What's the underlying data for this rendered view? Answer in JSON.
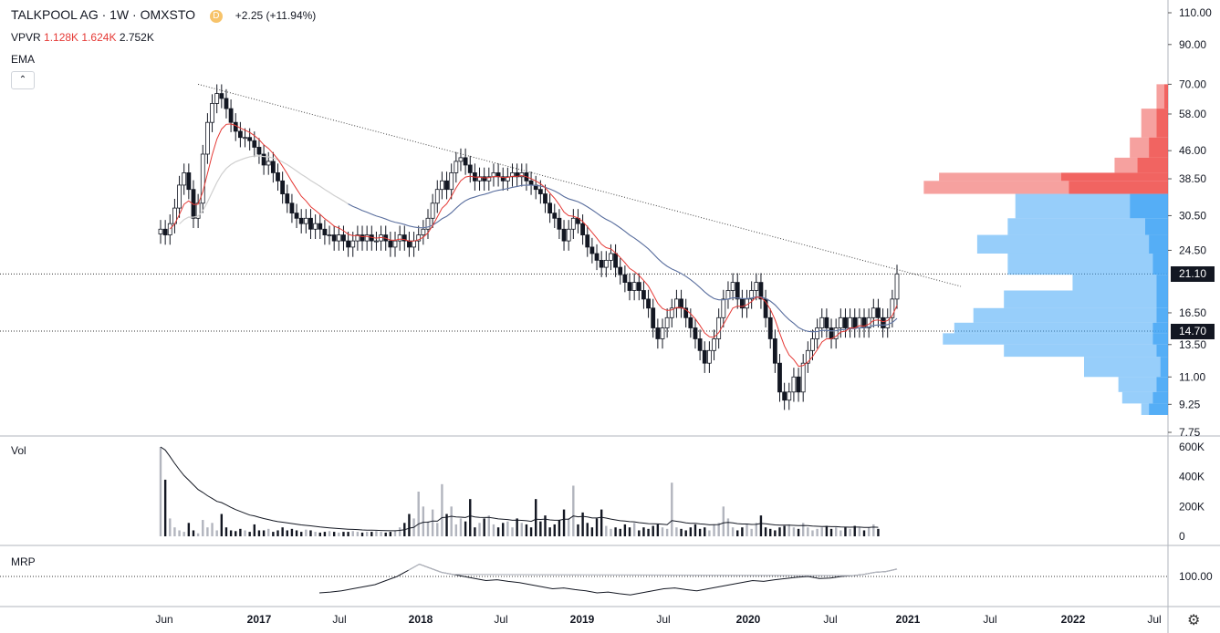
{
  "legend": {
    "symbol": "TALKPOOL AG · 1W · OMXSTO",
    "delay_badge": "D",
    "change": "+2.25 (+11.94%)",
    "vpvr_label": "VPVR",
    "vpvr_v1": "1.128K",
    "vpvr_v2": "1.624K",
    "vpvr_v3": "2.752K",
    "ema_label": "EMA",
    "collapse_glyph": "⌃"
  },
  "panes": {
    "volume_label": "Vol",
    "mrp_label": "MRP"
  },
  "price_tags": {
    "last": "21.10",
    "low_line": "14.70"
  },
  "colors": {
    "candle": "#131722",
    "ema_fast": "#e53935",
    "ema_slow": "#1e3f8a",
    "ema_slow_light": "#cfcfcf",
    "vpvr_up": "#42a5f5",
    "vpvr_down": "#ef5350",
    "grid": "#e0e3eb"
  },
  "icons": {
    "settings": "gear-icon"
  },
  "chart_data": {
    "type": "candlestick",
    "price_axis_ticks": [
      "110.00",
      "90.00",
      "70.00",
      "58.00",
      "46.00",
      "38.50",
      "30.50",
      "24.50",
      "21.10",
      "16.50",
      "14.70",
      "13.50",
      "11.00",
      "9.25",
      "7.75"
    ],
    "volume_axis_ticks": [
      "600K",
      "400K",
      "200K",
      "0"
    ],
    "mrp_axis_ticks": [
      "100.00"
    ],
    "time_axis_ticks": [
      "Jun",
      "2017",
      "Jul",
      "2018",
      "Jul",
      "2019",
      "Jul",
      "2020",
      "Jul",
      "2021",
      "Jul",
      "2022",
      "Jul"
    ],
    "trendline": {
      "from": 70,
      "to": 19.5
    },
    "horizontal_lines": [
      21.1,
      14.7
    ],
    "close_series": [
      28,
      27,
      29,
      32,
      37,
      40,
      36,
      30,
      33,
      45,
      55,
      62,
      66,
      64,
      60,
      55,
      52,
      50,
      50,
      49,
      47,
      45,
      42,
      43,
      40,
      38,
      35,
      33,
      31,
      30,
      29,
      30,
      28,
      29,
      28,
      27,
      27,
      26,
      27,
      26,
      25,
      26,
      27,
      26,
      27,
      26,
      26,
      27,
      26,
      25,
      26,
      27,
      26,
      25,
      26,
      27,
      28,
      30,
      33,
      36,
      38,
      36,
      40,
      43,
      44,
      42,
      40,
      38,
      39,
      38,
      39,
      40,
      39,
      38,
      39,
      40,
      39,
      40,
      38,
      37,
      36,
      35,
      33,
      31,
      30,
      28,
      26,
      28,
      30,
      29,
      27,
      25,
      24,
      23,
      22,
      23,
      24,
      22,
      21,
      20,
      19,
      20,
      19,
      18,
      17,
      15,
      14,
      15,
      16,
      17,
      18,
      17,
      16,
      15,
      14,
      13,
      12,
      13,
      14,
      16,
      18,
      19,
      20,
      18,
      17,
      18,
      19,
      20,
      18,
      16,
      14,
      12,
      10,
      9.5,
      10,
      11,
      10,
      12,
      13,
      14,
      15,
      16,
      15,
      14,
      15,
      16,
      15,
      16,
      15,
      16,
      15,
      16,
      17,
      16,
      15,
      16,
      18,
      21.1
    ],
    "vpvr_profile": [
      {
        "price": 70,
        "up": 0.02,
        "down": 0.01
      },
      {
        "price": 60,
        "up": 0.04,
        "down": 0.03
      },
      {
        "price": 50,
        "up": 0.05,
        "down": 0.05
      },
      {
        "price": 44,
        "up": 0.06,
        "down": 0.08
      },
      {
        "price": 40,
        "up": 0.32,
        "down": 0.28
      },
      {
        "price": 38,
        "up": 0.38,
        "down": 0.26
      },
      {
        "price": 35,
        "up": 0.3,
        "down": 0.1
      },
      {
        "price": 30,
        "up": 0.36,
        "down": 0.06
      },
      {
        "price": 27,
        "up": 0.45,
        "down": 0.05
      },
      {
        "price": 24,
        "up": 0.38,
        "down": 0.04
      },
      {
        "price": 21,
        "up": 0.22,
        "down": 0.03
      },
      {
        "price": 19,
        "up": 0.4,
        "down": 0.03
      },
      {
        "price": 17,
        "up": 0.48,
        "down": 0.03
      },
      {
        "price": 15.5,
        "up": 0.52,
        "down": 0.04
      },
      {
        "price": 14.5,
        "up": 0.55,
        "down": 0.04
      },
      {
        "price": 13.5,
        "up": 0.4,
        "down": 0.03
      },
      {
        "price": 12.5,
        "up": 0.2,
        "down": 0.02
      },
      {
        "price": 11,
        "up": 0.1,
        "down": 0.03
      },
      {
        "price": 10,
        "up": 0.08,
        "down": 0.04
      },
      {
        "price": 9.3,
        "up": 0.02,
        "down": 0.05
      }
    ],
    "volume_values": [
      600,
      380,
      120,
      60,
      40,
      30,
      90,
      40,
      20,
      110,
      60,
      90,
      40,
      150,
      60,
      40,
      35,
      50,
      40,
      30,
      80,
      40,
      40,
      50,
      30,
      40,
      60,
      40,
      50,
      40,
      30,
      45,
      40,
      30,
      25,
      30,
      35,
      30,
      25,
      30,
      30,
      35,
      30,
      25,
      30,
      30,
      35,
      30,
      25,
      30,
      40,
      60,
      90,
      150,
      120,
      300,
      200,
      100,
      180,
      90,
      350,
      150,
      200,
      80,
      120,
      100,
      250,
      60,
      90,
      120,
      140,
      80,
      60,
      90,
      100,
      60,
      120,
      90,
      80,
      60,
      250,
      100,
      140,
      60,
      80,
      110,
      180,
      120,
      340,
      80,
      160,
      90,
      60,
      120,
      180,
      70,
      50,
      60,
      50,
      80,
      60,
      90,
      40,
      60,
      50,
      70,
      80,
      60,
      50,
      360,
      60,
      50,
      40,
      60,
      80,
      50,
      60,
      40,
      80,
      90,
      200,
      120,
      60,
      40,
      60,
      80,
      50,
      90,
      140,
      60,
      50,
      40,
      60,
      70,
      80,
      60,
      50,
      90,
      60,
      40,
      50,
      60,
      70,
      50,
      60,
      40,
      60,
      50,
      70,
      60,
      40,
      60,
      80,
      50
    ],
    "mrp_values": [
      60,
      62,
      65,
      70,
      75,
      80,
      90,
      100,
      115,
      130,
      120,
      110,
      105,
      100,
      95,
      90,
      92,
      88,
      85,
      80,
      75,
      70,
      72,
      68,
      65,
      60,
      62,
      58,
      55,
      60,
      65,
      70,
      72,
      68,
      65,
      70,
      75,
      80,
      85,
      90,
      88,
      92,
      95,
      98,
      100,
      95,
      96,
      100,
      102,
      105,
      110,
      112,
      118
    ]
  }
}
